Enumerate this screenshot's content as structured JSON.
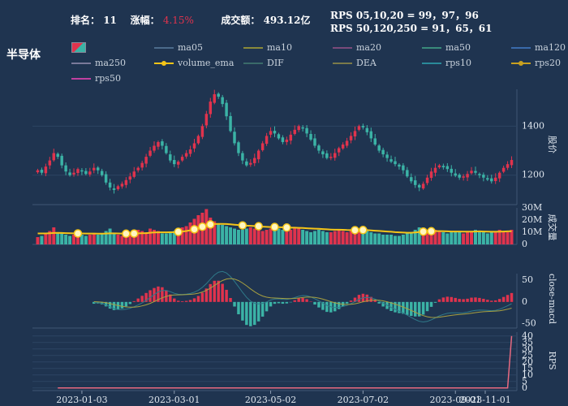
{
  "header": {
    "rank_label": "排名：",
    "rank_value": "11",
    "change_label": "涨幅：",
    "change_value": "4.15%",
    "turnover_label": "成交额：",
    "turnover_value": "493.12亿",
    "rps_line1": "RPS 05,10,20 = 99，97，96",
    "rps_line2": "RPS 50,120,250 = 91，65，61"
  },
  "stock_name": "半导体",
  "colors": {
    "up": "#e0334d",
    "down": "#3bb3a6",
    "volume_ema": "#f5c518",
    "bg": "#1f3450"
  },
  "legend": [
    {
      "name": "",
      "color": "#e0334d",
      "kind": "candle"
    },
    {
      "name": "ma05",
      "color": "#4b6a8a"
    },
    {
      "name": "ma10",
      "color": "#8a8a3a"
    },
    {
      "name": "ma20",
      "color": "#7a4a7a"
    },
    {
      "name": "ma50",
      "color": "#3a8a7a"
    },
    {
      "name": "ma120",
      "color": "#3a6aaa"
    },
    {
      "name": "ma250",
      "color": "#7a7a9a"
    },
    {
      "name": "volume_ema",
      "color": "#f5c518",
      "kind": "dot"
    },
    {
      "name": "DIF",
      "color": "#3a6a6a"
    },
    {
      "name": "DEA",
      "color": "#7a7a4a"
    },
    {
      "name": "rps10",
      "color": "#2a8a9a"
    },
    {
      "name": "rps20",
      "color": "#c8a020",
      "kind": "dot"
    },
    {
      "name": "rps50",
      "color": "#c040a0"
    }
  ],
  "chart_data": {
    "type": "candlestick",
    "x_ticks": [
      "2023-01-03",
      "2023-03-01",
      "2023-05-02",
      "2023-07-02",
      "2023-09-01",
      "2023-11-01"
    ],
    "price": {
      "ylabel": "股价",
      "ticks": [
        1200,
        1400
      ],
      "ylim": [
        1080,
        1550
      ],
      "close": [
        1220,
        1210,
        1235,
        1260,
        1290,
        1275,
        1240,
        1215,
        1200,
        1210,
        1225,
        1215,
        1205,
        1215,
        1230,
        1220,
        1200,
        1170,
        1150,
        1140,
        1155,
        1165,
        1180,
        1195,
        1215,
        1230,
        1250,
        1275,
        1300,
        1320,
        1335,
        1320,
        1290,
        1260,
        1245,
        1255,
        1275,
        1290,
        1305,
        1330,
        1360,
        1400,
        1450,
        1500,
        1530,
        1520,
        1490,
        1440,
        1380,
        1330,
        1290,
        1260,
        1240,
        1250,
        1270,
        1300,
        1330,
        1360,
        1380,
        1370,
        1350,
        1335,
        1345,
        1365,
        1385,
        1400,
        1390,
        1370,
        1345,
        1320,
        1300,
        1285,
        1270,
        1275,
        1290,
        1310,
        1325,
        1340,
        1360,
        1380,
        1400,
        1395,
        1375,
        1350,
        1325,
        1300,
        1285,
        1270,
        1255,
        1245,
        1235,
        1220,
        1195,
        1175,
        1160,
        1150,
        1165,
        1190,
        1215,
        1230,
        1240,
        1232,
        1225,
        1210,
        1198,
        1190,
        1195,
        1205,
        1218,
        1210,
        1200,
        1190,
        1182,
        1175,
        1190,
        1210,
        1230,
        1245,
        1262
      ]
    },
    "volume": {
      "ylabel": "成交量",
      "ticks": [
        "0",
        "10M",
        "20M",
        "30M"
      ],
      "ylim": [
        0,
        30
      ],
      "series_ema_name": "volume_ema",
      "values": [
        6,
        7,
        9,
        11,
        14,
        10,
        9,
        8,
        7,
        8,
        9,
        8,
        7,
        8,
        9,
        8,
        9,
        11,
        13,
        9,
        8,
        7,
        8,
        9,
        10,
        12,
        11,
        10,
        13,
        12,
        11,
        9,
        9,
        10,
        11,
        12,
        14,
        15,
        18,
        21,
        24,
        26,
        29,
        22,
        19,
        17,
        16,
        15,
        14,
        13,
        12,
        12,
        13,
        14,
        13,
        12,
        11,
        12,
        13,
        14,
        13,
        12,
        11,
        12,
        14,
        13,
        12,
        11,
        10,
        11,
        12,
        11,
        10,
        10,
        11,
        12,
        11,
        10,
        11,
        12,
        13,
        12,
        11,
        10,
        9,
        9,
        8,
        8,
        8,
        7,
        7,
        8,
        9,
        10,
        12,
        14,
        13,
        12,
        11,
        12,
        11,
        10,
        9,
        10,
        11,
        10,
        9,
        10,
        11,
        12,
        11,
        10,
        9,
        10,
        11,
        12,
        11,
        10,
        12
      ],
      "ema": [
        9,
        9,
        9,
        9.2,
        9.4,
        9.5,
        9.4,
        9.3,
        9.2,
        9.1,
        9,
        9,
        8.9,
        8.9,
        8.9,
        8.8,
        8.8,
        8.9,
        9.1,
        9.1,
        9,
        8.9,
        8.8,
        8.8,
        8.9,
        9.1,
        9.2,
        9.3,
        9.6,
        9.8,
        9.9,
        9.9,
        9.9,
        10,
        10.1,
        10.3,
        10.6,
        11,
        11.6,
        12.4,
        13.4,
        14.5,
        15.8,
        16.4,
        16.7,
        16.8,
        16.8,
        16.7,
        16.5,
        16.2,
        15.9,
        15.6,
        15.4,
        15.3,
        15.1,
        14.9,
        14.6,
        14.4,
        14.3,
        14.3,
        14.2,
        14,
        13.8,
        13.7,
        13.7,
        13.6,
        13.5,
        13.3,
        13.1,
        12.9,
        12.8,
        12.6,
        12.4,
        12.2,
        12.1,
        12.1,
        12,
        11.8,
        11.7,
        11.7,
        11.8,
        11.8,
        11.7,
        11.5,
        11.3,
        11.1,
        10.8,
        10.6,
        10.4,
        10.1,
        9.9,
        9.7,
        9.6,
        9.6,
        9.8,
        10.2,
        10.5,
        10.7,
        10.8,
        10.9,
        10.9,
        10.8,
        10.7,
        10.6,
        10.6,
        10.6,
        10.5,
        10.5,
        10.5,
        10.6,
        10.7,
        10.6,
        10.5,
        10.4,
        10.4,
        10.5,
        10.6,
        10.7,
        10.8
      ]
    },
    "macd": {
      "ylabel": "close-macd",
      "ticks": [
        "-50",
        "0",
        "50"
      ],
      "ylim": [
        -60,
        65
      ]
    },
    "rps": {
      "ylabel": "RPS",
      "ticks": [
        0,
        5,
        10,
        15,
        20,
        25,
        30,
        35,
        40
      ],
      "ylim": [
        -2,
        43
      ],
      "flat_value": 0,
      "last_value": 40
    }
  }
}
